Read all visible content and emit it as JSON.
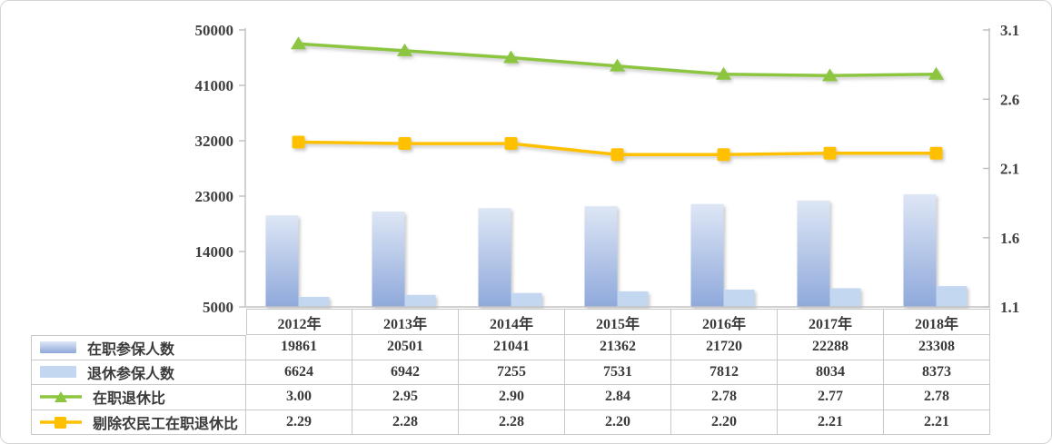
{
  "panel": {
    "background": "#ffffff",
    "border_color": "#d4d4d4"
  },
  "chart_data": {
    "type": "bar",
    "subtype": "combo-bar-line-dual-axis",
    "title": "",
    "xlabel": "",
    "ylabel": "",
    "grid": false,
    "legend_position": "table-left-column",
    "categories": [
      "2012年",
      "2013年",
      "2014年",
      "2015年",
      "2016年",
      "2017年",
      "2018年"
    ],
    "series": [
      {
        "name": "在职参保人数",
        "type": "bar",
        "axis": "left",
        "values": [
          19861,
          20501,
          21041,
          21362,
          21720,
          22288,
          23308
        ],
        "labels": [
          "19861",
          "20501",
          "21041",
          "21362",
          "21720",
          "22288",
          "23308"
        ],
        "color_top": "#dde6f5",
        "color_bottom": "#8fa9db",
        "marker": "none"
      },
      {
        "name": "退休参保人数",
        "type": "bar",
        "axis": "left",
        "values": [
          6624,
          6942,
          7255,
          7531,
          7812,
          8034,
          8373
        ],
        "labels": [
          "6624",
          "6942",
          "7255",
          "7531",
          "7812",
          "8034",
          "8373"
        ],
        "color": "#c3d8f0",
        "marker": "none"
      },
      {
        "name": "在职退休比",
        "type": "line",
        "axis": "right",
        "values": [
          3.0,
          2.95,
          2.9,
          2.84,
          2.78,
          2.77,
          2.78
        ],
        "labels": [
          "3.00",
          "2.95",
          "2.90",
          "2.84",
          "2.78",
          "2.77",
          "2.78"
        ],
        "color": "#8cc63f",
        "marker": "triangle"
      },
      {
        "name": "剔除农民工在职退休比",
        "type": "line",
        "axis": "right",
        "values": [
          2.29,
          2.28,
          2.28,
          2.2,
          2.2,
          2.21,
          2.21
        ],
        "labels": [
          "2.29",
          "2.28",
          "2.28",
          "2.20",
          "2.20",
          "2.21",
          "2.21"
        ],
        "color": "#ffc000",
        "marker": "square"
      }
    ],
    "left_axis": {
      "min": 5000,
      "max": 50000,
      "ticks": [
        5000,
        14000,
        23000,
        32000,
        41000,
        50000
      ],
      "tick_labels": [
        "5000",
        "14000",
        "23000",
        "32000",
        "41000",
        "50000"
      ]
    },
    "right_axis": {
      "min": 1.1,
      "max": 3.1,
      "ticks": [
        1.1,
        1.6,
        2.1,
        2.6,
        3.1
      ],
      "tick_labels": [
        "1.1",
        "1.6",
        "2.1",
        "2.6",
        "3.1"
      ]
    },
    "axis_color": "#c2c2c2",
    "text_color": "#3f3f3f"
  }
}
